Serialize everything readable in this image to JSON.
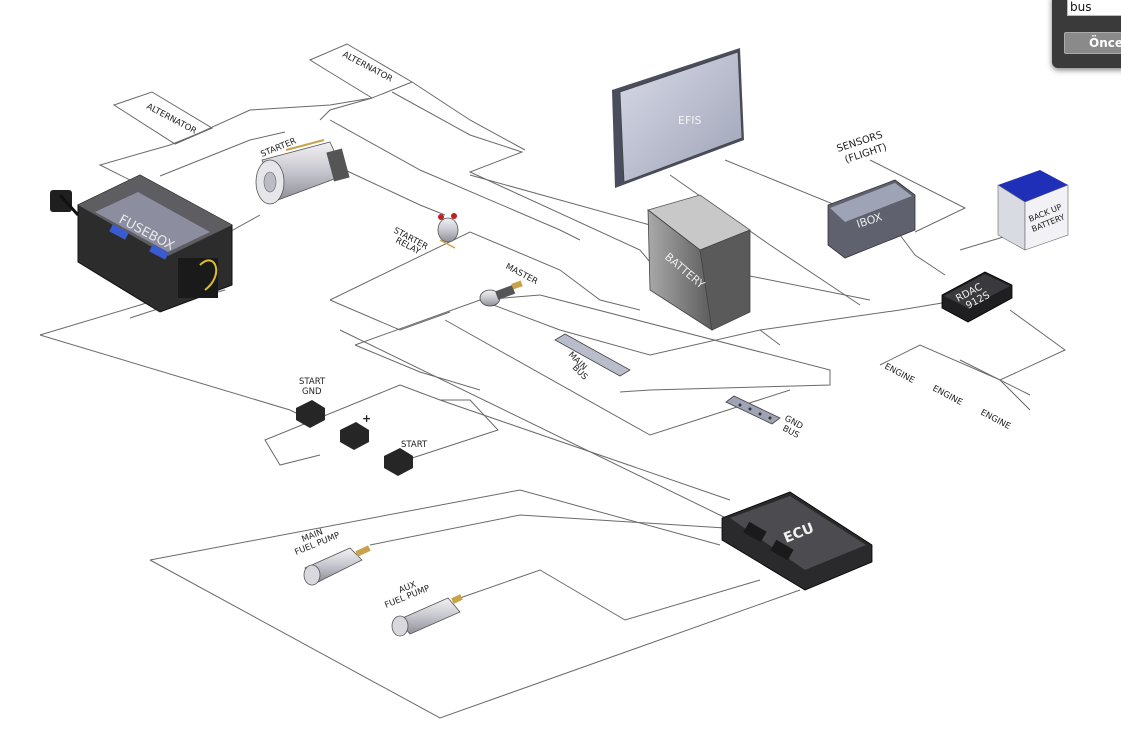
{
  "diagram": {
    "components": {
      "alternator_top": "ALTERNATOR",
      "alternator_left": "ALTERNATOR",
      "starter": "STARTER",
      "fusebox": "FUSEBOX",
      "starter_relay_1": "STARTER",
      "starter_relay_2": "RELAY",
      "master": "MASTER",
      "efis": "EFIS",
      "battery": "BATTERY",
      "sensors_1": "SENSORS",
      "sensors_2": "(FLIGHT)",
      "ibox": "IBOX",
      "backup_battery_1": "BACK UP",
      "backup_battery_2": "BATTERY",
      "rdac_1": "RDAC",
      "rdac_2": "912S",
      "main_bus_1": "MAIN",
      "main_bus_2": "BUS",
      "gnd_bus_1": "GND",
      "gnd_bus_2": "BUS",
      "engine_1": "ENGINE",
      "engine_2": "ENGINE",
      "engine_3": "ENGINE",
      "start_gnd_1": "START",
      "start_gnd_2": "GND",
      "plus": "+",
      "start": "START",
      "ecu": "ECU",
      "main_fuel_pump_1": "MAIN",
      "main_fuel_pump_2": "FUEL PUMP",
      "aux_fuel_pump_1": "AUX",
      "aux_fuel_pump_2": "FUEL PUMP"
    }
  },
  "search_popup": {
    "query": "bus",
    "prev_label": "Önceki"
  }
}
